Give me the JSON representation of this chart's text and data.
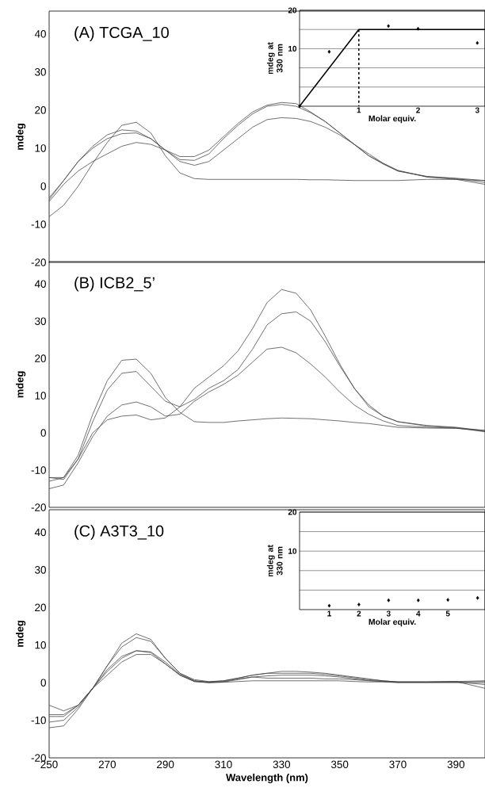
{
  "chart_data": [
    {
      "type": "line",
      "annotations": [
        "(A) TCGA_10"
      ],
      "ylabel": "mdeg",
      "xlim": [
        250,
        400
      ],
      "ylim": [
        -20,
        46
      ],
      "yticks": [
        -20,
        -10,
        0,
        10,
        20,
        30,
        40
      ],
      "tick_labels": "y",
      "x": [
        250,
        255,
        260,
        265,
        270,
        275,
        280,
        285,
        290,
        295,
        300,
        305,
        310,
        315,
        320,
        325,
        330,
        335,
        340,
        345,
        350,
        355,
        360,
        365,
        370,
        380,
        390,
        400
      ],
      "series": [
        {
          "color": "#404040",
          "values": [
            -8,
            -5,
            0,
            6,
            11.5,
            16,
            16.8,
            14,
            8,
            3.5,
            2,
            1.8,
            1.8,
            1.8,
            1.8,
            1.8,
            1.8,
            1.8,
            1.7,
            1.7,
            1.6,
            1.5,
            1.5,
            1.5,
            1.5,
            1.8,
            1.8,
            1.5
          ]
        },
        {
          "color": "#404040",
          "values": [
            -3,
            1.5,
            6.5,
            10.5,
            13.5,
            14.8,
            14.5,
            12.5,
            9.5,
            7.8,
            7.8,
            9.5,
            13,
            16.5,
            19.5,
            21.3,
            22,
            21.7,
            19.5,
            17,
            14,
            11,
            8,
            6,
            4,
            2.6,
            2.1,
            1.5
          ]
        },
        {
          "color": "#404040",
          "values": [
            -3.5,
            1.5,
            6.5,
            10,
            12.5,
            13.8,
            14,
            12.5,
            9.5,
            7,
            6.8,
            8.5,
            12.5,
            16,
            19,
            21,
            21.5,
            21,
            19.3,
            17,
            14,
            11,
            8,
            5.8,
            4,
            2.5,
            2,
            1
          ]
        },
        {
          "color": "#404040",
          "values": [
            -4,
            0.5,
            4,
            6.5,
            8.5,
            10.5,
            11.5,
            11,
            9.5,
            6.5,
            5.5,
            6.5,
            9.5,
            12.5,
            15.5,
            17.5,
            18,
            17.8,
            17,
            15.5,
            13.5,
            11,
            8.5,
            6,
            4.2,
            2.4,
            1.8,
            0.5
          ]
        }
      ]
    },
    {
      "type": "scatter",
      "xlabel": "Molar equiv.",
      "ylabel": "mdeg at 330 nm",
      "grid": "y",
      "xlim": [
        0,
        3.13
      ],
      "ylim": [
        -5,
        20
      ],
      "xticks": [
        1,
        2,
        3
      ],
      "yticks": [
        20,
        {
          "value": 15,
          "label": null
        },
        10,
        {
          "value": 5,
          "label": null
        },
        {
          "value": 0,
          "label": null
        }
      ],
      "series": [
        {
          "type": "scatter",
          "marker": "diamond",
          "color": "#000000",
          "x": [
            0,
            0.5,
            1.5,
            2,
            3
          ],
          "values": [
            -5,
            9.2,
            15.9,
            15.2,
            11.5
          ]
        },
        {
          "type": "line",
          "marker": "none",
          "color": "#000000",
          "x": [
            0,
            1,
            3.13
          ],
          "values": [
            -5,
            15,
            15
          ]
        },
        {
          "type": "line",
          "marker": "none",
          "line_style": "dashed",
          "color": "#000000",
          "x": [
            1,
            1
          ],
          "values": [
            15,
            -5
          ]
        }
      ]
    },
    {
      "type": "line",
      "annotations": [
        "(B) ICB2_5’"
      ],
      "ylabel": "mdeg",
      "xlim": [
        250,
        400
      ],
      "ylim": [
        -20,
        46
      ],
      "yticks": [
        -20,
        -10,
        0,
        10,
        20,
        30,
        40
      ],
      "tick_labels": "y",
      "x": [
        250,
        255,
        260,
        265,
        270,
        275,
        280,
        285,
        290,
        295,
        300,
        305,
        310,
        315,
        320,
        325,
        330,
        335,
        340,
        345,
        350,
        355,
        360,
        365,
        370,
        380,
        390,
        400
      ],
      "series": [
        {
          "color": "#404040",
          "values": [
            -12,
            -12,
            -6,
            5,
            14,
            19.5,
            19.8,
            16,
            9.5,
            5.5,
            3,
            2.8,
            2.8,
            3.2,
            3.5,
            3.8,
            4,
            3.9,
            3.8,
            3.5,
            3.2,
            2.8,
            2.5,
            2,
            1.5,
            1.3,
            1.2,
            0.7
          ]
        },
        {
          "color": "#404040",
          "values": [
            -13,
            -12,
            -7,
            0,
            3.5,
            4.5,
            4.8,
            3.5,
            4,
            7,
            12,
            15,
            18,
            22,
            28,
            35,
            38.5,
            37.5,
            33,
            26,
            18.5,
            12,
            7,
            4.5,
            3,
            2,
            1.5,
            0.6
          ]
        },
        {
          "color": "#404040",
          "values": [
            -12,
            -12.5,
            -7,
            3,
            11.5,
            16,
            16.5,
            12.5,
            8.5,
            7,
            9,
            12,
            14,
            17,
            22.5,
            29,
            32,
            32.5,
            30,
            24.5,
            18,
            12,
            7.5,
            4.5,
            3,
            1.8,
            1.4,
            0.4
          ]
        },
        {
          "color": "#404040",
          "values": [
            -15,
            -14,
            -8,
            -1,
            4.5,
            7.5,
            8.3,
            7,
            4.5,
            5,
            8.5,
            11,
            13,
            15.5,
            19,
            22.5,
            23,
            21.5,
            18.5,
            15,
            11,
            7.5,
            5,
            3.2,
            2,
            1.5,
            1.3,
            0.3
          ]
        }
      ]
    },
    {
      "type": "line",
      "annotations": [
        "(C) A3T3_10"
      ],
      "xlabel": "Wavelength (nm)",
      "ylabel": "mdeg",
      "xlim": [
        250,
        400
      ],
      "ylim": [
        -20,
        46
      ],
      "xticks": [
        250,
        270,
        290,
        310,
        330,
        350,
        370,
        390
      ],
      "yticks": [
        -20,
        -10,
        0,
        10,
        20,
        30,
        40
      ],
      "x": [
        250,
        255,
        260,
        265,
        270,
        275,
        280,
        285,
        290,
        295,
        300,
        305,
        310,
        315,
        320,
        325,
        330,
        335,
        340,
        345,
        350,
        355,
        360,
        365,
        370,
        380,
        390,
        400
      ],
      "series": [
        {
          "color": "#404040",
          "values": [
            -12,
            -11.5,
            -7,
            -1.5,
            4.5,
            10.5,
            13,
            11.5,
            6.5,
            2.5,
            0.5,
            0.2,
            0.5,
            1.2,
            2,
            2.5,
            3,
            3,
            2.8,
            2.5,
            2,
            1.5,
            1,
            0.5,
            0.2,
            0.2,
            0.3,
            0.5
          ]
        },
        {
          "color": "#404040",
          "values": [
            -10.5,
            -10,
            -6.5,
            -1.5,
            4.5,
            9.5,
            12,
            11,
            6.5,
            2.5,
            0.8,
            0.3,
            0.5,
            1.2,
            2,
            2.5,
            2.5,
            2.5,
            2.5,
            2.2,
            1.8,
            1.3,
            0.8,
            0.5,
            0.2,
            0.2,
            0.3,
            -1.5
          ]
        },
        {
          "color": "#404040",
          "values": [
            -9,
            -9,
            -6,
            -1.5,
            3.5,
            7,
            8.5,
            8.2,
            5.5,
            2.2,
            0.5,
            0.1,
            0.3,
            1,
            1.5,
            1.2,
            1.2,
            1.2,
            1.2,
            1,
            1,
            0.8,
            0.5,
            0.3,
            0.1,
            0.1,
            0.2,
            0.3
          ]
        },
        {
          "color": "#404040",
          "values": [
            -6,
            -7.5,
            -6,
            -1.5,
            3,
            6.5,
            8.5,
            8,
            5,
            2,
            0.3,
            0,
            0.2,
            0.8,
            1.5,
            1.8,
            2,
            2,
            2,
            1.8,
            1.5,
            1,
            0.6,
            0.3,
            0.2,
            0.2,
            0.2,
            -0.5
          ]
        },
        {
          "color": "#404040",
          "values": [
            -8.5,
            -8.5,
            -6,
            -1.5,
            2,
            5.5,
            7.5,
            7.5,
            5,
            2,
            0.3,
            0,
            0.1,
            0.3,
            0.5,
            0.5,
            0.5,
            0.5,
            0.5,
            0.5,
            0.5,
            0.3,
            0.2,
            0.2,
            0,
            0,
            0,
            0
          ]
        }
      ]
    },
    {
      "type": "scatter",
      "xlabel": "Molar equiv.",
      "ylabel": "mdeg at 330 nm",
      "marker": "diamond",
      "grid": "y",
      "xlim": [
        0,
        6.25
      ],
      "ylim": [
        -5,
        20
      ],
      "xticks": [
        1,
        2,
        3,
        4,
        5
      ],
      "yticks": [
        20,
        {
          "value": 15,
          "label": null
        },
        10,
        {
          "value": 5,
          "label": null
        },
        {
          "value": 0,
          "label": null
        }
      ],
      "series": [
        {
          "type": "scatter",
          "color": "#000000",
          "x": [
            1,
            2,
            3,
            4,
            5,
            6
          ],
          "values": [
            -4,
            -3.7,
            -2.6,
            -2.6,
            -2.5,
            -2
          ]
        }
      ]
    }
  ]
}
